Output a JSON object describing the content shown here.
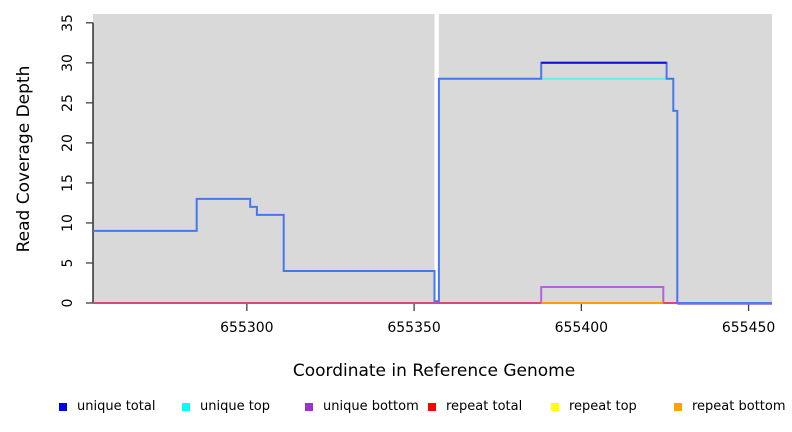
{
  "chart_data": {
    "type": "line",
    "title": "",
    "xlabel": "Coordinate in Reference Genome",
    "ylabel": "Read Coverage Depth",
    "xlim": [
      655254,
      655457
    ],
    "ylim": [
      0,
      35
    ],
    "grid": false,
    "plot_bg": "#d9d9d9",
    "gap_band": {
      "start": 655356.1,
      "end": 655357.4,
      "color": "#ffffff"
    },
    "xticks": [
      655300,
      655350,
      655400,
      655450
    ],
    "xtick_labels": [
      "655300",
      "655350",
      "655400",
      "655450"
    ],
    "yticks": [
      0,
      5,
      10,
      15,
      20,
      25,
      30,
      35
    ],
    "ytick_labels": [
      "0",
      "5",
      "10",
      "15",
      "20",
      "25",
      "30",
      "35"
    ],
    "series": [
      {
        "name": "unique bottom",
        "color": "#b164dc",
        "segments": [
          [
            655254,
            655388,
            0
          ],
          [
            655388,
            655424.5,
            2
          ],
          [
            655424.5,
            655457,
            0
          ]
        ]
      },
      {
        "name": "repeat top",
        "color": "#ffff00",
        "segments": [
          [
            655254,
            655428.7,
            0
          ]
        ]
      },
      {
        "name": "repeat total",
        "color": "#e0457a",
        "segments": [
          [
            655254,
            655428.7,
            0
          ]
        ]
      },
      {
        "name": "repeat bottom",
        "color": "#ff9e00",
        "segments": [
          [
            655388,
            655424.5,
            0
          ]
        ]
      },
      {
        "name": "unique top",
        "color": "#5df1f1",
        "segments": [
          [
            655357.4,
            655425.5,
            28
          ]
        ]
      },
      {
        "name": "unique total",
        "color": "#4478f0",
        "segments": [
          [
            655254,
            655285,
            9
          ],
          [
            655285,
            655301,
            13
          ],
          [
            655301,
            655303,
            12
          ],
          [
            655303,
            655311,
            11
          ],
          [
            655311,
            655356.1,
            4
          ],
          [
            655356.1,
            655357.4,
            0
          ],
          [
            655357.4,
            655388,
            28
          ],
          [
            655388,
            655425.5,
            30
          ],
          [
            655425.5,
            655427.5,
            28
          ],
          [
            655427.5,
            655428.7,
            24
          ],
          [
            655428.7,
            655457,
            0
          ]
        ]
      }
    ],
    "overlays": [
      {
        "name": "unique-total-30-plateau",
        "color": "#0f10dd",
        "segment": [
          655388,
          655425.5,
          30
        ]
      },
      {
        "name": "unique-bottom-over-total-tail",
        "color": "#7d6ae0",
        "segment": [
          655428.7,
          655457,
          0
        ]
      }
    ]
  },
  "legend": {
    "items": [
      {
        "label": "unique total",
        "color": "#0202f0"
      },
      {
        "label": "unique top",
        "color": "#00ffff"
      },
      {
        "label": "unique bottom",
        "color": "#9b2fd9"
      },
      {
        "label": "repeat total",
        "color": "#ff0000"
      },
      {
        "label": "repeat top",
        "color": "#ffff00"
      },
      {
        "label": "repeat bottom",
        "color": "#ffa200"
      }
    ]
  }
}
